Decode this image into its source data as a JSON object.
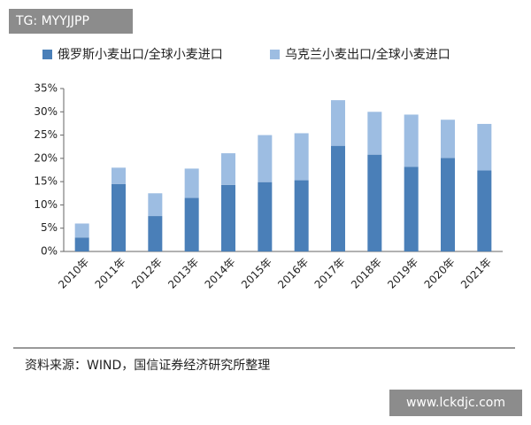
{
  "watermark_top": "TG: MYYJJPP",
  "watermark_bottom": "www.lckdjc.com",
  "chart_data": {
    "type": "stacked-bar",
    "categories": [
      "2010年",
      "2011年",
      "2012年",
      "2013年",
      "2014年",
      "2015年",
      "2016年",
      "2017年",
      "2018年",
      "2019年",
      "2020年",
      "2021年"
    ],
    "series": [
      {
        "name": "俄罗斯小麦出口/全球小麦进口",
        "color": "#4a7fb8",
        "values": [
          3.0,
          14.5,
          7.6,
          11.5,
          14.3,
          14.9,
          15.3,
          22.7,
          20.8,
          18.2,
          20.1,
          17.4
        ]
      },
      {
        "name": "乌克兰小麦出口/全球小麦进口",
        "color": "#9dbde2",
        "values": [
          3.0,
          3.5,
          4.9,
          6.3,
          6.8,
          10.1,
          10.1,
          9.8,
          9.2,
          11.2,
          8.2,
          10.0
        ]
      }
    ],
    "ylim": [
      0,
      35
    ],
    "yticks": [
      {
        "value": 0,
        "label": "0%"
      },
      {
        "value": 5,
        "label": "5%"
      },
      {
        "value": 10,
        "label": "10%"
      },
      {
        "value": 15,
        "label": "15%"
      },
      {
        "value": 20,
        "label": "20%"
      },
      {
        "value": 25,
        "label": "25%"
      },
      {
        "value": 30,
        "label": "30%"
      },
      {
        "value": 35,
        "label": "35%"
      }
    ],
    "grid": false,
    "legend": "top",
    "source": "资料来源：WIND，国信证券经济研究所整理"
  }
}
